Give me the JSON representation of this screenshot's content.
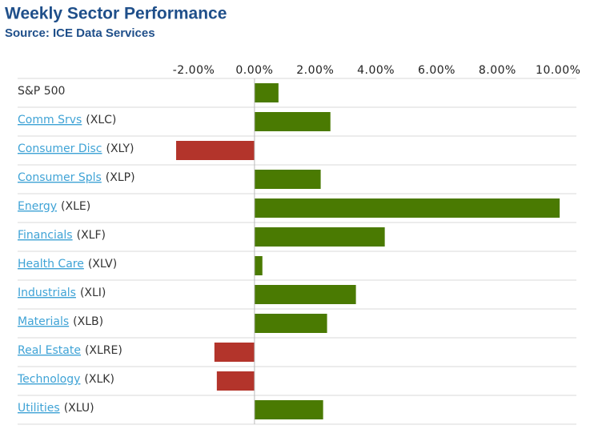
{
  "chart_data": {
    "type": "hbar",
    "title": "Weekly Sector Performance",
    "subtitle": "Source: ICE Data Services",
    "categories": [
      "S&P 500",
      "Comm Srvs",
      "Consumer Disc",
      "Consumer Spls",
      "Energy",
      "Financials",
      "Health Care",
      "Industrials",
      "Materials",
      "Real Estate",
      "Technology",
      "Utilities"
    ],
    "tickers": [
      null,
      "(XLC)",
      "(XLY)",
      "(XLP)",
      "(XLE)",
      "(XLF)",
      "(XLV)",
      "(XLI)",
      "(XLB)",
      "(XLRE)",
      "(XLK)",
      "(XLU)"
    ],
    "values": [
      0.79,
      2.5,
      -2.58,
      2.18,
      10.05,
      4.29,
      0.26,
      3.34,
      2.39,
      -1.32,
      -1.24,
      2.26
    ],
    "positive_color": "#4a7a02",
    "negative_color": "#b3342b",
    "xlim": [
      -7.8,
      10.6
    ],
    "xticks": [
      {
        "value": -2,
        "label": "-2.00%"
      },
      {
        "value": 0,
        "label": "0.00%"
      },
      {
        "value": 2,
        "label": "2.00%"
      },
      {
        "value": 4,
        "label": "4.00%"
      },
      {
        "value": 6,
        "label": "6.00%"
      },
      {
        "value": 8,
        "label": "8.00%"
      },
      {
        "value": 10,
        "label": "10.00%"
      }
    ]
  }
}
